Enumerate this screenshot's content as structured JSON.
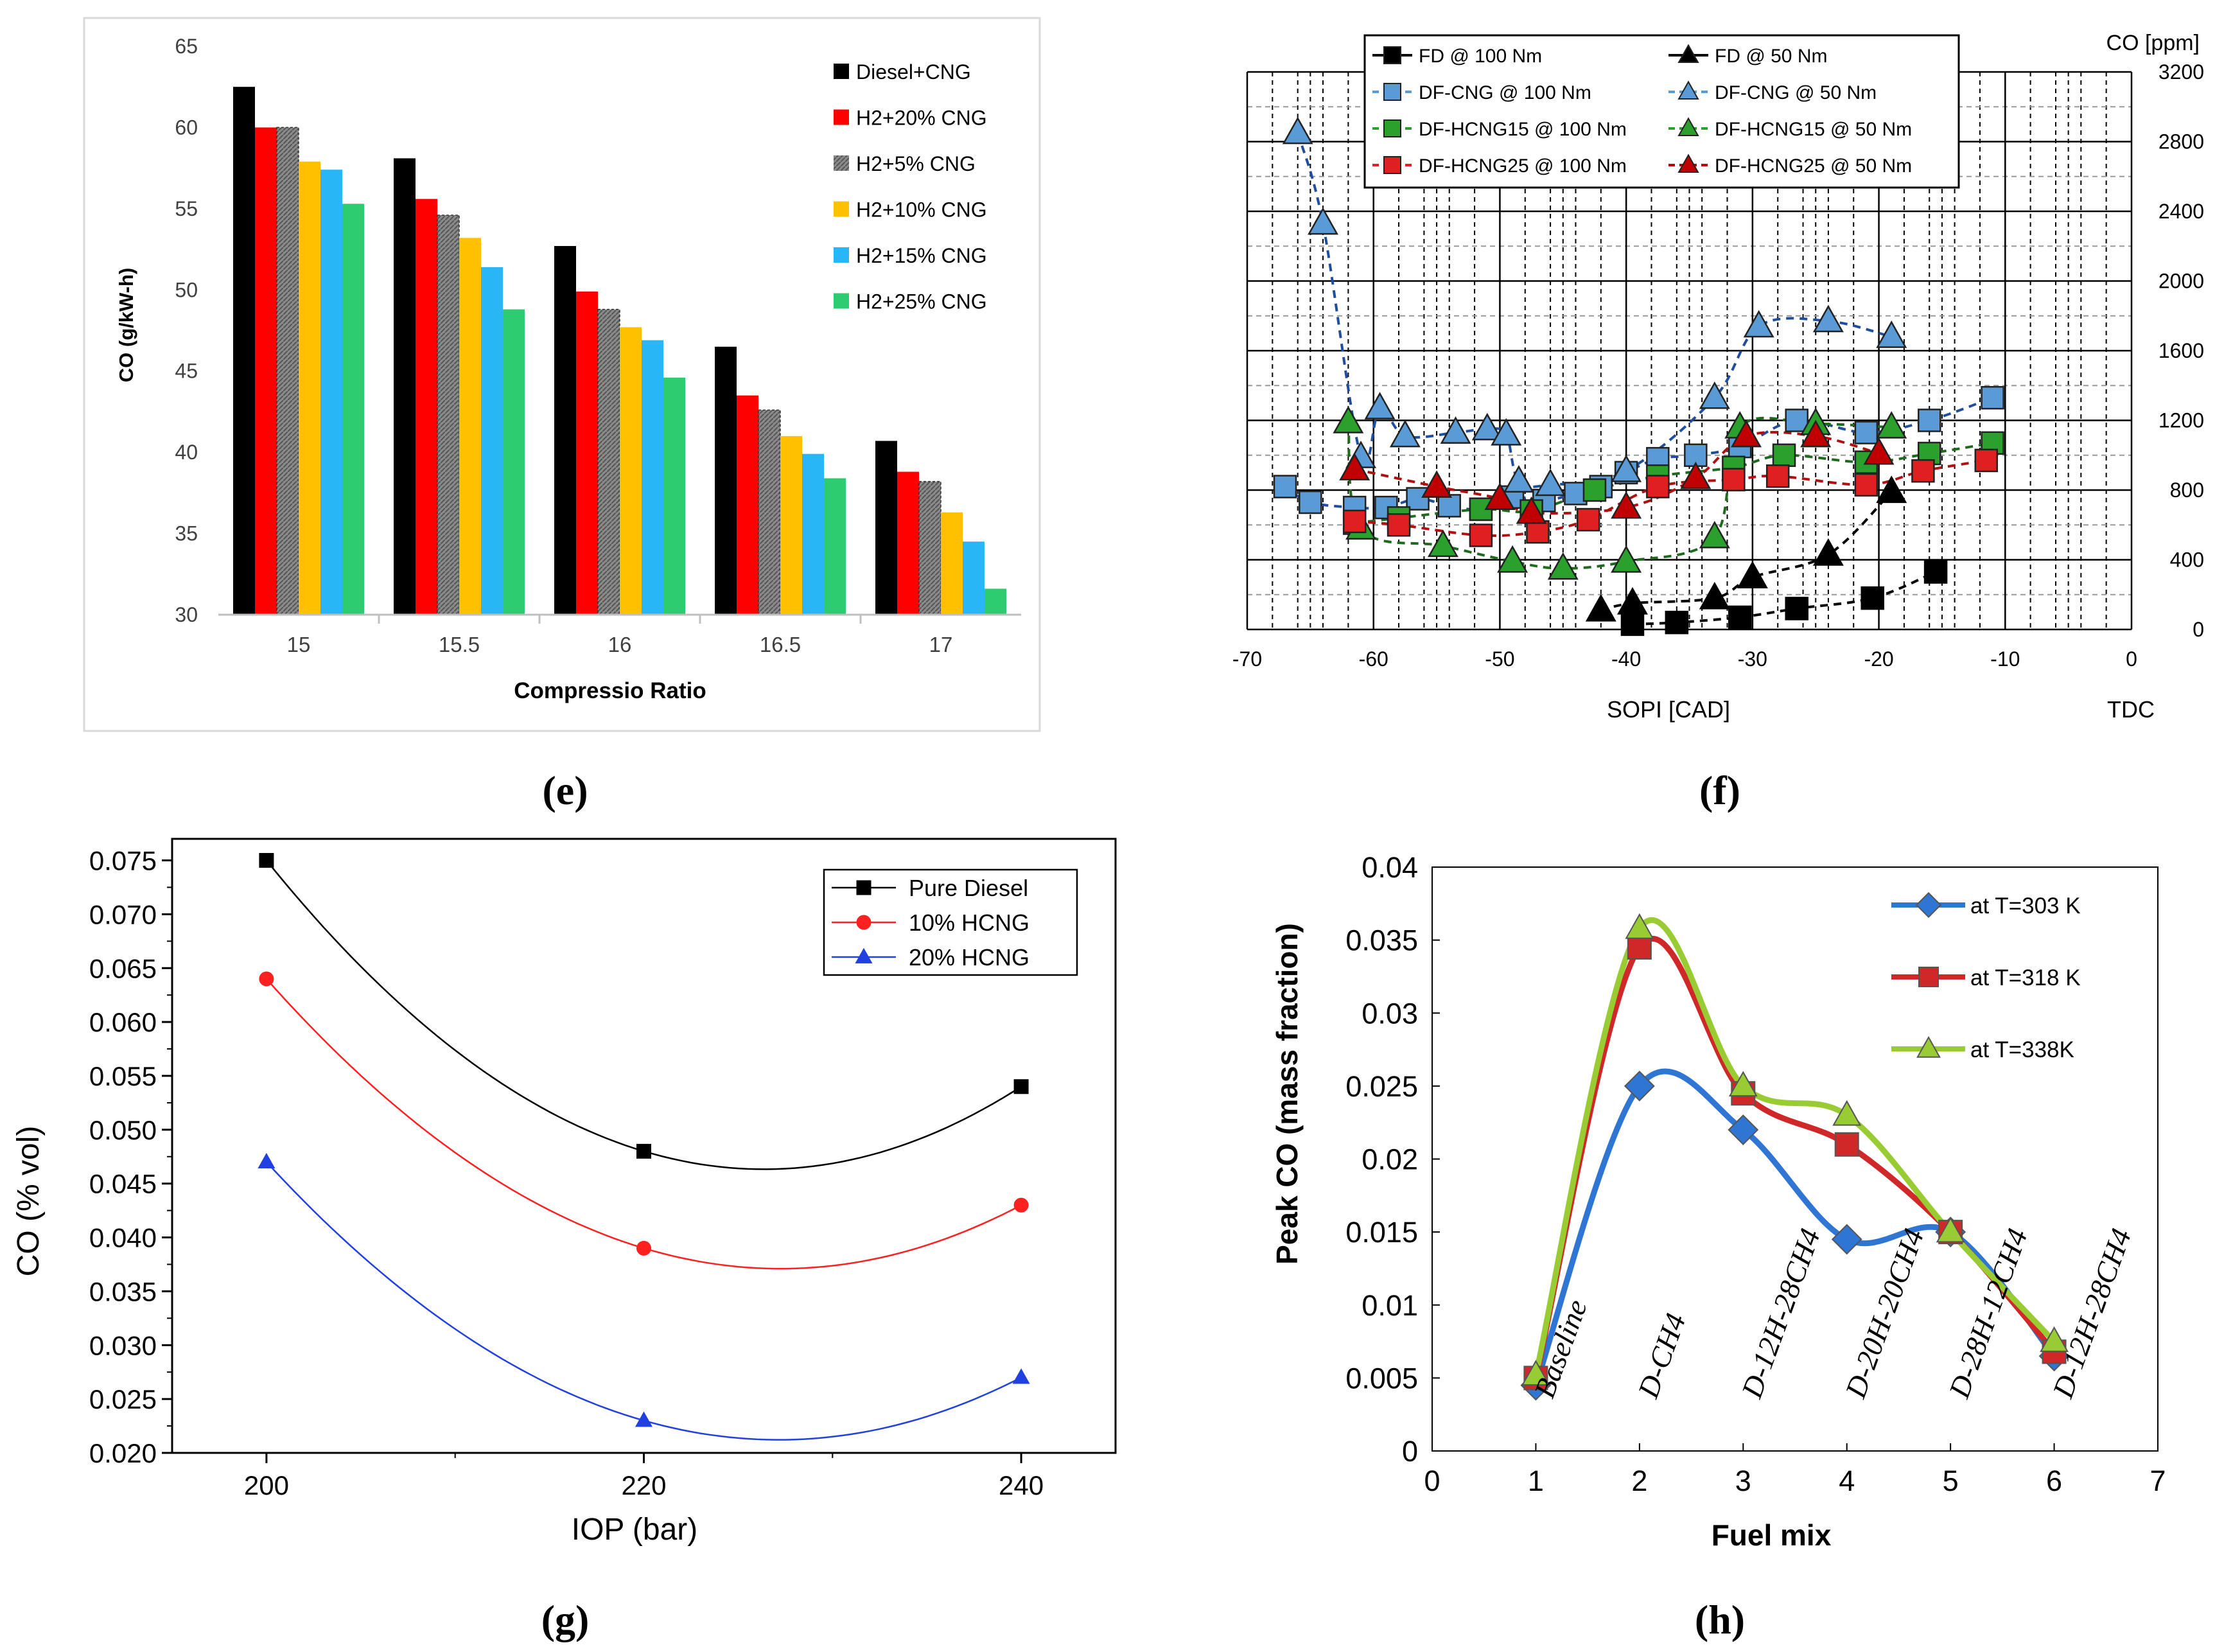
{
  "panel_labels": {
    "e": "(e)",
    "f": "(f)",
    "g": "(g)",
    "h": "(h)"
  },
  "chart_data": [
    {
      "id": "e",
      "type": "bar",
      "title": "",
      "xlabel": "Compressio Ratio",
      "ylabel": "CO (g/kW-h)",
      "ylim": [
        30,
        65
      ],
      "yticks": [
        30,
        35,
        40,
        45,
        50,
        55,
        60,
        65
      ],
      "categories": [
        "15",
        "15.5",
        "16",
        "16.5",
        "17"
      ],
      "legend_position": "top-right",
      "series": [
        {
          "name": "Diesel+CNG",
          "color": "#000000",
          "values": [
            62.5,
            58.1,
            52.7,
            46.5,
            40.7
          ]
        },
        {
          "name": "H2+20% CNG",
          "color": "#ff0000",
          "values": [
            60.0,
            55.6,
            49.9,
            43.5,
            38.8
          ]
        },
        {
          "name": "H2+5% CNG",
          "color": "#808080",
          "values": [
            60.0,
            54.6,
            48.8,
            42.6,
            38.2
          ]
        },
        {
          "name": "H2+10% CNG",
          "color": "#ffc000",
          "values": [
            57.9,
            53.2,
            47.7,
            41.0,
            36.3
          ]
        },
        {
          "name": "H2+15% CNG",
          "color": "#29b6f6",
          "values": [
            57.4,
            51.4,
            46.9,
            39.9,
            34.5
          ]
        },
        {
          "name": "H2+25% CNG",
          "color": "#2ecc71",
          "values": [
            55.3,
            48.8,
            44.6,
            38.4,
            31.6
          ]
        }
      ]
    },
    {
      "id": "f",
      "type": "scatter",
      "title": "",
      "xlabel": "SOPI [CAD]",
      "xlabel_right": "TDC",
      "ylabel_right": "CO [ppm]",
      "xlim": [
        -70,
        0
      ],
      "ylim": [
        0,
        3200
      ],
      "xticks": [
        -70,
        -60,
        -50,
        -40,
        -30,
        -20,
        -10,
        0
      ],
      "yticks": [
        0,
        400,
        800,
        1200,
        1600,
        2000,
        2400,
        2800,
        3200
      ],
      "legend_position": "top",
      "series": [
        {
          "name": "FD @ 100 Nm",
          "marker": "square",
          "color": "#000000",
          "x": [
            -39.5,
            -36,
            -31,
            -26.5,
            -20.5,
            -15.5
          ],
          "y": [
            30,
            40,
            70,
            120,
            180,
            330
          ]
        },
        {
          "name": "FD @ 50 Nm",
          "marker": "triangle",
          "color": "#000000",
          "x": [
            -42,
            -39.5,
            -33,
            -30,
            -24,
            -19
          ],
          "y": [
            110,
            150,
            180,
            300,
            430,
            790
          ]
        },
        {
          "name": "DF-CNG @ 100 Nm",
          "marker": "square",
          "color": "#5b9bd5",
          "x": [
            -67,
            -65,
            -61.5,
            -59,
            -56.5,
            -54,
            -51.5,
            -49,
            -46.5,
            -44,
            -42,
            -40,
            -37.5,
            -34.5,
            -31,
            -26.5,
            -21,
            -16,
            -11
          ],
          "y": [
            820,
            730,
            700,
            700,
            750,
            710,
            690,
            760,
            740,
            780,
            820,
            900,
            980,
            1000,
            1050,
            1200,
            1130,
            1200,
            1330
          ]
        },
        {
          "name": "DF-CNG @ 50 Nm",
          "marker": "triangle",
          "color": "#5b9bd5",
          "x": [
            -66,
            -64,
            -61,
            -59.5,
            -57.5,
            -53.5,
            -51,
            -49.5,
            -48.5,
            -46,
            -40,
            -33,
            -29.5,
            -24,
            -19
          ],
          "y": [
            2850,
            2330,
            990,
            1270,
            1110,
            1130,
            1150,
            1120,
            850,
            830,
            910,
            1330,
            1740,
            1770,
            1680
          ]
        },
        {
          "name": "DF-HCNG15 @ 100 Nm",
          "marker": "square",
          "color": "#2ca02c",
          "x": [
            -61.5,
            -58,
            -51.5,
            -47.5,
            -42.5,
            -37.5,
            -31.5,
            -27.5,
            -21,
            -16,
            -11
          ],
          "y": [
            610,
            640,
            690,
            680,
            800,
            880,
            930,
            1000,
            960,
            1010,
            1070
          ]
        },
        {
          "name": "DF-HCNG15 @ 50 Nm",
          "marker": "triangle",
          "color": "#2ca02c",
          "x": [
            -62,
            -61,
            -54.5,
            -49,
            -45,
            -40,
            -33,
            -31,
            -25,
            -19
          ],
          "y": [
            1190,
            580,
            480,
            390,
            350,
            390,
            530,
            1160,
            1180,
            1160
          ]
        },
        {
          "name": "DF-HCNG25 @ 100 Nm",
          "marker": "square",
          "color": "#e02020",
          "x": [
            -61.5,
            -58,
            -51.5,
            -47,
            -43,
            -37.5,
            -31.5,
            -28,
            -21,
            -16.5,
            -11.5
          ],
          "y": [
            620,
            600,
            540,
            560,
            630,
            820,
            860,
            880,
            830,
            910,
            970
          ]
        },
        {
          "name": "DF-HCNG25 @ 50 Nm",
          "marker": "triangle",
          "color": "#c00000",
          "x": [
            -61.5,
            -55,
            -50,
            -47.5,
            -40,
            -34.5,
            -30.5,
            -25,
            -20
          ],
          "y": [
            920,
            820,
            750,
            670,
            700,
            870,
            1110,
            1110,
            1010
          ]
        }
      ]
    },
    {
      "id": "g",
      "type": "line",
      "title": "",
      "xlabel": "IOP (bar)",
      "ylabel": "CO (% vol)",
      "xlim": [
        195,
        245
      ],
      "ylim": [
        0.02,
        0.077
      ],
      "xticks": [
        200,
        220,
        240
      ],
      "yticks": [
        0.02,
        0.025,
        0.03,
        0.035,
        0.04,
        0.045,
        0.05,
        0.055,
        0.06,
        0.065,
        0.07,
        0.075
      ],
      "ytick_labels": [
        "0.020",
        "0.025",
        "0.030",
        "0.035",
        "0.040",
        "0.045",
        "0.050",
        "0.055",
        "0.060",
        "0.065",
        "0.070",
        "0.075"
      ],
      "legend_position": "top-right",
      "series": [
        {
          "name": "Pure Diesel",
          "marker": "square",
          "color": "#000000",
          "x": [
            200,
            220,
            240
          ],
          "y": [
            0.075,
            0.048,
            0.054
          ]
        },
        {
          "name": "10% HCNG",
          "marker": "circle",
          "color": "#ff2020",
          "x": [
            200,
            220,
            240
          ],
          "y": [
            0.064,
            0.039,
            0.043
          ]
        },
        {
          "name": "20% HCNG",
          "marker": "triangle",
          "color": "#2040e0",
          "x": [
            200,
            220,
            240
          ],
          "y": [
            0.047,
            0.023,
            0.027
          ]
        }
      ]
    },
    {
      "id": "h",
      "type": "line",
      "title": "",
      "xlabel": "Fuel mix",
      "ylabel": "Peak CO (mass fraction)",
      "xlim": [
        0,
        7
      ],
      "ylim": [
        0,
        0.04
      ],
      "xticks": [
        0,
        1,
        2,
        3,
        4,
        5,
        6,
        7
      ],
      "yticks": [
        0,
        0.005,
        0.01,
        0.015,
        0.02,
        0.025,
        0.03,
        0.035,
        0.04
      ],
      "ytick_labels": [
        "0",
        "0.005",
        "0.01",
        "0.015",
        "0.02",
        "0.025",
        "0.03",
        "0.035",
        "0.04"
      ],
      "annotations": [
        "Baseline",
        "D-CH4",
        "D-12H-28CH4",
        "D-20H-20CH4",
        "D-28H-12CH4",
        "D-12H-28CH4"
      ],
      "legend_position": "top-right",
      "series": [
        {
          "name": "at T=303 K",
          "marker": "diamond",
          "color": "#2e75d4",
          "x": [
            1,
            2,
            3,
            4,
            5,
            6
          ],
          "y": [
            0.0045,
            0.025,
            0.022,
            0.0145,
            0.015,
            0.0065
          ]
        },
        {
          "name": "at T=318 K",
          "marker": "square",
          "color": "#d02828",
          "x": [
            1,
            2,
            3,
            4,
            5,
            6
          ],
          "y": [
            0.005,
            0.0345,
            0.0245,
            0.021,
            0.015,
            0.0068
          ]
        },
        {
          "name": "at T=338K",
          "marker": "triangle",
          "color": "#99cc33",
          "x": [
            1,
            2,
            3,
            4,
            5,
            6
          ],
          "y": [
            0.0052,
            0.0358,
            0.025,
            0.023,
            0.015,
            0.0075
          ]
        }
      ]
    }
  ]
}
